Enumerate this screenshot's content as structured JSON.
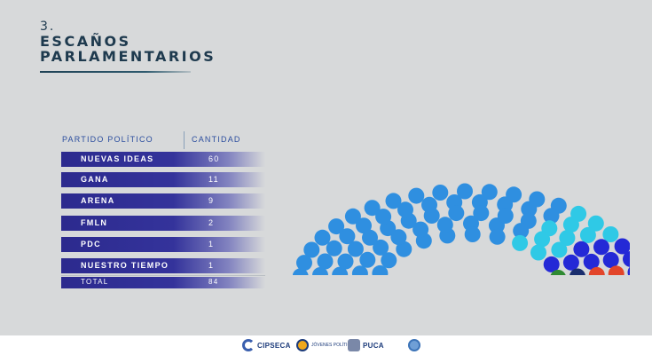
{
  "slide": {
    "number": "3.",
    "title_line1": "ESCAÑOS",
    "title_line2": "PARLAMENTARIOS"
  },
  "table": {
    "col_party": "PARTIDO POLÍTICO",
    "col_count": "CANTIDAD",
    "rows": [
      {
        "party": "NUEVAS IDEAS",
        "count": "60"
      },
      {
        "party": "GANA",
        "count": "11"
      },
      {
        "party": "ARENA",
        "count": "9"
      },
      {
        "party": "FMLN",
        "count": "2"
      },
      {
        "party": "PDC",
        "count": "1"
      },
      {
        "party": "NUESTRO TIEMPO",
        "count": "1"
      }
    ],
    "total_label": "TOTAL",
    "total_value": "84"
  },
  "chart_data": {
    "type": "parliament",
    "series": [
      {
        "name": "NUEVAS IDEAS",
        "value": 60,
        "color": "#2f8fe0"
      },
      {
        "name": "GANA",
        "value": 11,
        "color": "#2fc9e6"
      },
      {
        "name": "ARENA",
        "value": 9,
        "color": "#2429d6"
      },
      {
        "name": "FMLN",
        "value": 2,
        "color": "#e2452a"
      },
      {
        "name": "PDC",
        "value": 1,
        "color": "#1a2e6e"
      },
      {
        "name": "NUESTRO TIEMPO",
        "value": 1,
        "color": "#2f8a32"
      }
    ],
    "total": 84
  },
  "footer": {
    "logos": [
      "CIPSECA",
      "JÓVENES POLÍTICOS",
      "PUCA",
      "UN"
    ]
  }
}
